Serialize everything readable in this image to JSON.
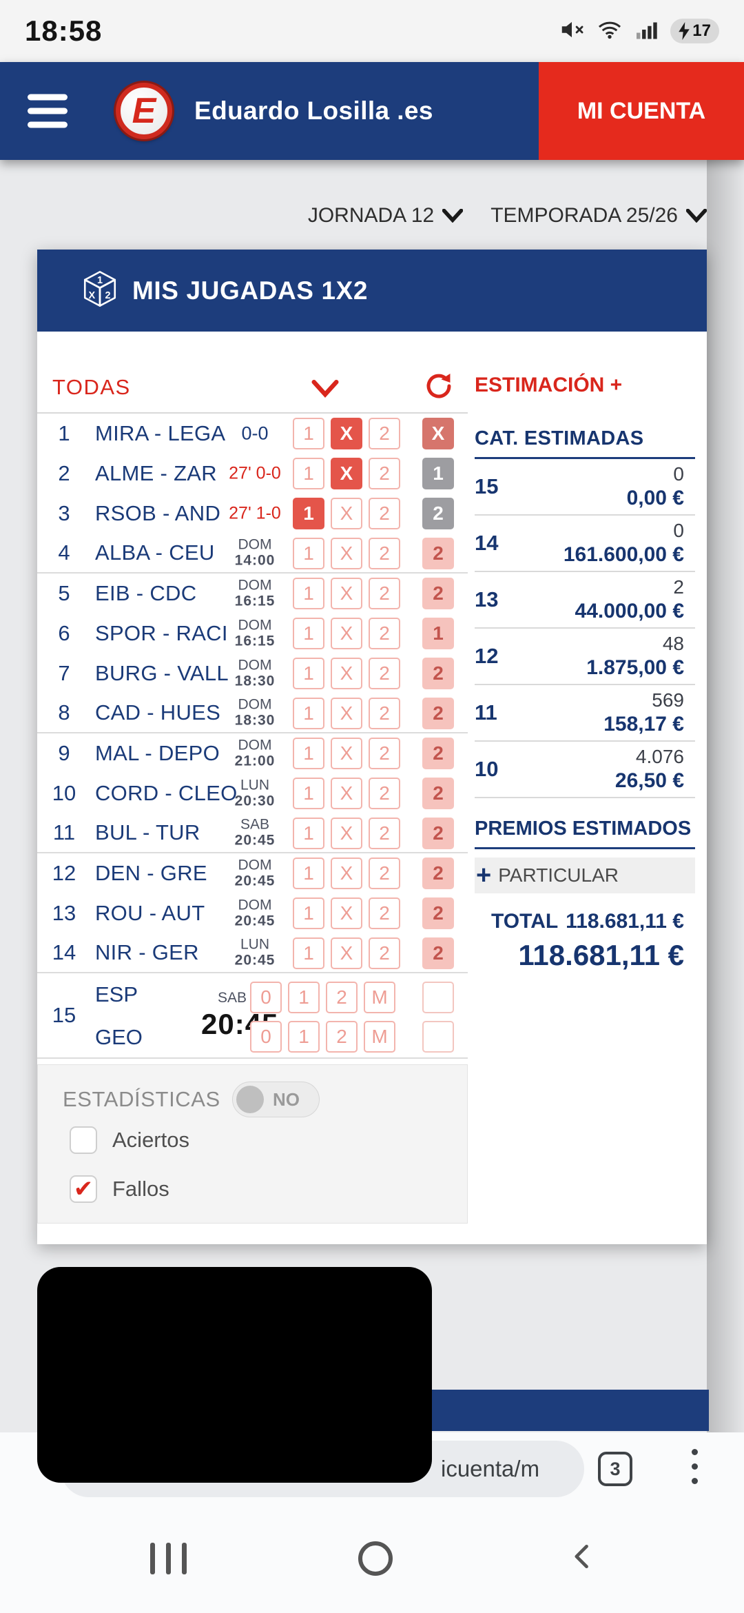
{
  "status_bar": {
    "time": "18:58",
    "battery_pct": "17"
  },
  "header": {
    "brand": "Eduardo Losilla .es",
    "logo_letter": "E",
    "account_button": "MI CUENTA"
  },
  "filters": {
    "jornada": "JORNADA 12",
    "temporada": "TEMPORADA 25/26"
  },
  "card": {
    "title": "MIS JUGADAS 1X2",
    "filter_all": "TODAS",
    "estimation_link": "ESTIMACIÓN +"
  },
  "table": {
    "options": [
      "1",
      "X",
      "2"
    ],
    "rows": [
      {
        "num": "1",
        "teams": "MIRA - LEGA",
        "info": "0-0",
        "info_live": false,
        "selected": "X",
        "result": "X",
        "result_style": "red",
        "group_end": false
      },
      {
        "num": "2",
        "teams": "ALME - ZAR",
        "info": "27' 0-0",
        "info_live": true,
        "selected": "X",
        "result": "1",
        "result_style": "grey",
        "group_end": false
      },
      {
        "num": "3",
        "teams": "RSOB - AND",
        "info": "27' 1-0",
        "info_live": true,
        "selected": "1",
        "result": "2",
        "result_style": "grey",
        "group_end": false
      },
      {
        "num": "4",
        "teams": "ALBA - CEU",
        "info_day": "DOM",
        "info_time": "14:00",
        "selected": null,
        "result": "2",
        "result_style": "pink",
        "group_end": true
      },
      {
        "num": "5",
        "teams": "EIB - CDC",
        "info_day": "DOM",
        "info_time": "16:15",
        "selected": null,
        "result": "2",
        "result_style": "pink",
        "group_end": false
      },
      {
        "num": "6",
        "teams": "SPOR - RACI",
        "info_day": "DOM",
        "info_time": "16:15",
        "selected": null,
        "result": "1",
        "result_style": "pink",
        "group_end": false
      },
      {
        "num": "7",
        "teams": "BURG - VALL",
        "info_day": "DOM",
        "info_time": "18:30",
        "selected": null,
        "result": "2",
        "result_style": "pink",
        "group_end": false
      },
      {
        "num": "8",
        "teams": "CAD - HUES",
        "info_day": "DOM",
        "info_time": "18:30",
        "selected": null,
        "result": "2",
        "result_style": "pink",
        "group_end": true
      },
      {
        "num": "9",
        "teams": "MAL - DEPO",
        "info_day": "DOM",
        "info_time": "21:00",
        "selected": null,
        "result": "2",
        "result_style": "pink",
        "group_end": false
      },
      {
        "num": "10",
        "teams": "CORD - CLEO",
        "info_day": "LUN",
        "info_time": "20:30",
        "selected": null,
        "result": "2",
        "result_style": "pink",
        "group_end": false
      },
      {
        "num": "11",
        "teams": "BUL - TUR",
        "info_day": "SAB",
        "info_time": "20:45",
        "selected": null,
        "result": "2",
        "result_style": "pink",
        "group_end": true
      },
      {
        "num": "12",
        "teams": "DEN - GRE",
        "info_day": "DOM",
        "info_time": "20:45",
        "selected": null,
        "result": "2",
        "result_style": "pink",
        "group_end": false
      },
      {
        "num": "13",
        "teams": "ROU - AUT",
        "info_day": "DOM",
        "info_time": "20:45",
        "selected": null,
        "result": "2",
        "result_style": "pink",
        "group_end": false
      },
      {
        "num": "14",
        "teams": "NIR - GER",
        "info_day": "LUN",
        "info_time": "20:45",
        "selected": null,
        "result": "2",
        "result_style": "pink",
        "group_end": true
      }
    ],
    "special_row": {
      "num": "15",
      "team_top": "ESP",
      "team_bottom": "GEO",
      "info_day": "SAB",
      "info_time": "20:45",
      "options": [
        "0",
        "1",
        "2",
        "M"
      ]
    }
  },
  "estimates": {
    "title": "CAT. ESTIMADAS",
    "categories": [
      {
        "cat": "15",
        "count": "0",
        "amount": "0,00 €"
      },
      {
        "cat": "14",
        "count": "0",
        "amount": "161.600,00 €"
      },
      {
        "cat": "13",
        "count": "2",
        "amount": "44.000,00 €"
      },
      {
        "cat": "12",
        "count": "48",
        "amount": "1.875,00 €"
      },
      {
        "cat": "11",
        "count": "569",
        "amount": "158,17 €"
      },
      {
        "cat": "10",
        "count": "4.076",
        "amount": "26,50 €"
      }
    ],
    "premios_title": "PREMIOS ESTIMADOS",
    "plus_glyph": "+",
    "particular": "PARTICULAR",
    "total_label": "TOTAL",
    "total_inline": "118.681,11 €",
    "total_big": "118.681,11 €"
  },
  "stats": {
    "label": "ESTADÍSTICAS",
    "toggle_value": "NO",
    "aciertos_label": "Aciertos",
    "fallos_label": "Fallos",
    "aciertos_checked": false,
    "fallos_checked": true,
    "check_glyph": "✔"
  },
  "browser": {
    "url_fragment": "icuenta/m",
    "tab_count": "3"
  },
  "colors": {
    "primary_blue": "#1d3d7c",
    "accent_red": "#d9261c",
    "selected_red": "#e4554a",
    "result_pink": "#f6c3bd",
    "result_grey": "#9d9da1"
  }
}
